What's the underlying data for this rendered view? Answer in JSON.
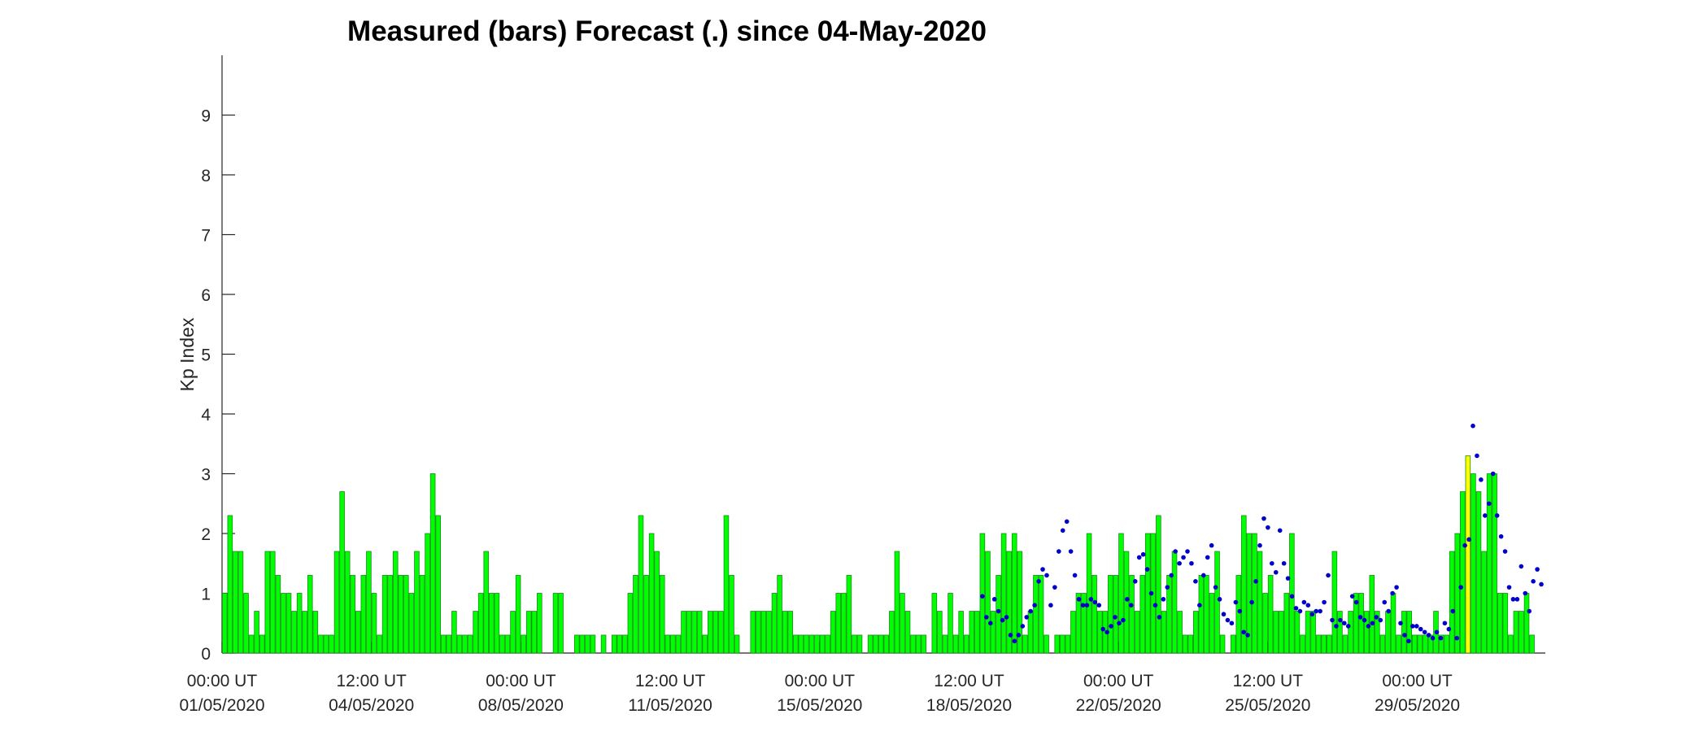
{
  "chart_data": {
    "type": "bar",
    "title": "Measured (bars) Forecast (.) since 04-May-2020",
    "xlabel": "",
    "ylabel": "Kp Index",
    "ylim": [
      0,
      10
    ],
    "yticks": [
      0,
      1,
      2,
      3,
      4,
      5,
      6,
      7,
      8,
      9
    ],
    "x_unit": "3-hour Kp interval",
    "xlim_intervals": [
      0,
      248
    ],
    "xticks": [
      {
        "interval": 0,
        "time": "00:00 UT",
        "date": "01/05/2020"
      },
      {
        "interval": 28,
        "time": "12:00 UT",
        "date": "04/05/2020"
      },
      {
        "interval": 56,
        "time": "00:00 UT",
        "date": "08/05/2020"
      },
      {
        "interval": 84,
        "time": "12:00 UT",
        "date": "11/05/2020"
      },
      {
        "interval": 112,
        "time": "00:00 UT",
        "date": "15/05/2020"
      },
      {
        "interval": 140,
        "time": "12:00 UT",
        "date": "18/05/2020"
      },
      {
        "interval": 168,
        "time": "00:00 UT",
        "date": "22/05/2020"
      },
      {
        "interval": 196,
        "time": "12:00 UT",
        "date": "25/05/2020"
      },
      {
        "interval": 224,
        "time": "00:00 UT",
        "date": "29/05/2020"
      }
    ],
    "colors": {
      "bar_quiet": "#00ff00",
      "bar_unsettled": "#ffff00",
      "bar_edge": "#1a8c1a",
      "forecast_dot": "#0000cc",
      "axis": "#262626"
    },
    "series": [
      {
        "name": "Measured",
        "style": "bars",
        "start_interval": 0,
        "values": [
          1,
          2.3,
          1.7,
          1.7,
          1,
          0.3,
          0.7,
          0.3,
          1.7,
          1.7,
          1.3,
          1,
          1,
          0.7,
          1,
          0.7,
          1.3,
          0.7,
          0.3,
          0.3,
          0.3,
          1.7,
          2.7,
          1.7,
          1.3,
          0.7,
          1.3,
          1.7,
          1,
          0.3,
          1.3,
          1.3,
          1.7,
          1.3,
          1.3,
          1,
          1.7,
          1.3,
          2,
          3,
          2.3,
          0.3,
          0.3,
          0.7,
          0.3,
          0.3,
          0.3,
          0.7,
          1,
          1.7,
          1,
          1,
          0.3,
          0.3,
          0.7,
          1.3,
          0.3,
          0.7,
          0.7,
          1,
          0,
          0,
          1,
          1,
          0,
          0,
          0.3,
          0.3,
          0.3,
          0.3,
          0,
          0.3,
          0,
          0.3,
          0.3,
          0.3,
          1,
          1.3,
          2.3,
          1.3,
          2,
          1.7,
          1.3,
          0.3,
          0.3,
          0.3,
          0.7,
          0.7,
          0.7,
          0.7,
          0.3,
          0.7,
          0.7,
          0.7,
          2.3,
          1.3,
          0.3,
          0,
          0,
          0.7,
          0.7,
          0.7,
          0.7,
          1,
          1.3,
          0.7,
          0.7,
          0.3,
          0.3,
          0.3,
          0.3,
          0.3,
          0.3,
          0.3,
          0.7,
          1,
          1,
          1.3,
          0.3,
          0.3,
          0,
          0.3,
          0.3,
          0.3,
          0.3,
          0.7,
          1.7,
          1,
          0.7,
          0.3,
          0.3,
          0.3,
          0,
          1,
          0.7,
          0.3,
          1,
          0.3,
          0.7,
          0.3,
          0.7,
          0.7,
          2,
          1.7,
          0.7,
          1.3,
          2,
          1.7,
          2,
          1.7,
          0.3,
          0.7,
          1.3,
          1.3,
          0.3,
          0,
          0.3,
          0.3,
          0.3,
          0.7,
          1,
          1,
          2,
          1.3,
          0.7,
          0.7,
          1.3,
          1.3,
          2,
          1.7,
          1.3,
          0.7,
          1.3,
          2,
          2,
          2.3,
          0.7,
          1.3,
          1.7,
          0.7,
          0.3,
          0.3,
          0.7,
          1.3,
          1.3,
          1,
          1.7,
          0.3,
          0,
          0.3,
          1.3,
          2.3,
          2,
          2,
          1.7,
          1,
          1.3,
          0.7,
          0.7,
          1,
          2,
          0.7,
          0.3,
          0.7,
          0.7,
          0.3,
          0.3,
          0.3,
          1.7,
          0.7,
          0.3,
          0.7,
          1,
          1,
          0.7,
          1.3,
          0.7,
          0.3,
          0.7,
          1,
          0.3,
          0.7,
          0.7,
          0.3,
          0.3,
          0.3,
          0.3,
          0.7,
          0.3,
          0.3,
          1.7,
          2,
          2.7,
          3.3,
          3,
          2.7,
          1.7,
          3,
          3,
          1,
          1,
          0.3,
          0.7,
          0.7,
          1,
          0.3
        ]
      },
      {
        "name": "Forecast",
        "style": "dots",
        "start_interval": 142.5,
        "values": [
          0.95,
          0.6,
          0.5,
          0.9,
          0.7,
          0.55,
          0.6,
          0.3,
          0.2,
          0.3,
          0.45,
          0.6,
          0.7,
          0.8,
          1.2,
          1.4,
          1.3,
          0.8,
          1.1,
          1.7,
          2.05,
          2.2,
          1.7,
          1.3,
          0.9,
          0.8,
          0.8,
          0.9,
          0.85,
          0.8,
          0.4,
          0.35,
          0.45,
          0.6,
          0.5,
          0.55,
          0.9,
          0.8,
          1.2,
          1.6,
          1.65,
          1.4,
          1.0,
          0.8,
          0.6,
          0.9,
          1.1,
          1.3,
          1.7,
          1.5,
          1.6,
          1.7,
          1.5,
          1.2,
          0.8,
          1.3,
          1.6,
          1.8,
          1.1,
          0.9,
          0.65,
          0.55,
          0.5,
          0.85,
          0.7,
          0.35,
          0.3,
          0.85,
          1.2,
          1.8,
          2.25,
          2.1,
          1.5,
          1.35,
          2.05,
          1.5,
          1.25,
          0.95,
          0.75,
          0.7,
          0.85,
          0.8,
          0.65,
          0.7,
          0.7,
          0.85,
          1.3,
          0.55,
          0.45,
          0.55,
          0.5,
          0.45,
          0.95,
          0.85,
          0.6,
          0.55,
          0.45,
          0.5,
          0.6,
          0.55,
          0.85,
          0.7,
          1.0,
          1.1,
          0.5,
          0.3,
          0.2,
          0.45,
          0.45,
          0.4,
          0.35,
          0.3,
          0.25,
          0.35,
          0.25,
          0.5,
          0.4,
          0.7,
          0.25,
          1.1,
          1.8,
          1.9,
          3.8,
          3.3,
          2.9,
          2.3,
          2.5,
          3.0,
          2.3,
          1.95,
          1.7,
          1.1,
          0.9,
          0.9,
          1.45,
          1.0,
          0.7,
          1.2,
          1.4,
          1.15
        ]
      }
    ]
  }
}
